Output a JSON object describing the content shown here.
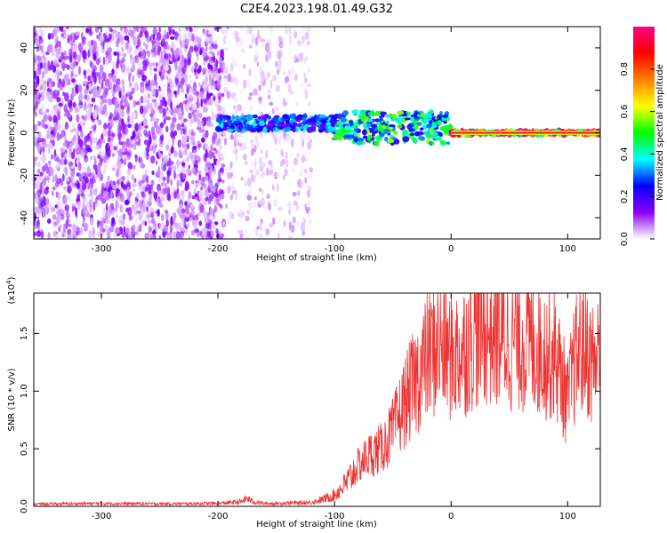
{
  "figure_title": "C2E4.2023.198.01.49.G32",
  "chart_data": [
    {
      "type": "heatmap",
      "xlabel": "Height of straight line (km)",
      "ylabel": "Frequency (Hz)",
      "xlim": [
        -358,
        128
      ],
      "ylim": [
        -50,
        50
      ],
      "xticks": [
        -300,
        -200,
        -100,
        0,
        100
      ],
      "xtick_labels": [
        "-300",
        "-200",
        "-100",
        "0",
        "100"
      ],
      "yticks": [
        -40,
        -20,
        0,
        20,
        40
      ],
      "ytick_labels": [
        "-40",
        "-20",
        "0",
        "20",
        "40"
      ],
      "colorbar": {
        "label": "Normalized spectral amplitude",
        "range": [
          0.0,
          1.0
        ],
        "ticks": [
          0.0,
          0.2,
          0.4,
          0.6,
          0.8
        ],
        "tick_labels": [
          "0.0",
          "0.2",
          "0.4",
          "0.6",
          "0.8"
        ],
        "colormap_stops": [
          "#ffffff",
          "#8b00ff",
          "#0000ff",
          "#00ffff",
          "#00ff00",
          "#ffff00",
          "#ff8000",
          "#ff0000",
          "#ff0080"
        ]
      },
      "bands": [
        {
          "x_range": [
            -358,
            -195
          ],
          "freq_range": [
            -50,
            50
          ],
          "amplitude": 0.12,
          "description_level": "noise"
        },
        {
          "x_range": [
            -195,
            -120
          ],
          "freq_range": [
            -50,
            50
          ],
          "amplitude": 0.05,
          "description_level": "sparse"
        },
        {
          "x_range": [
            -200,
            -100
          ],
          "freq_range": [
            1,
            8
          ],
          "amplitude": 0.3
        },
        {
          "x_range": [
            -100,
            0
          ],
          "freq_range": [
            -5,
            10
          ],
          "amplitude": 0.45
        },
        {
          "x_range": [
            0,
            128
          ],
          "freq_range": [
            -1,
            1
          ],
          "amplitude": 0.95
        }
      ]
    },
    {
      "type": "line",
      "xlabel": "Height of straight line (km)",
      "ylabel": "SNR (10 * v/v)",
      "y_multiplier": "(x10",
      "y_multiplier_exp": "4",
      "y_multiplier_close": ")",
      "xlim": [
        -358,
        128
      ],
      "ylim": [
        0,
        18500
      ],
      "xticks": [
        -300,
        -200,
        -100,
        0,
        100
      ],
      "xtick_labels": [
        "-300",
        "-200",
        "-100",
        "0",
        "100"
      ],
      "yticks": [
        0,
        5000,
        10000,
        15000
      ],
      "ytick_labels": [
        "0.0",
        "0.5",
        "1.0",
        "1.5"
      ],
      "color": "#ee3333",
      "series": [
        {
          "x": [
            -358,
            -300,
            -250,
            -200,
            -180,
            -175,
            -170,
            -160,
            -150,
            -140,
            -130,
            -120,
            -110,
            -100,
            -90,
            -80,
            -70,
            -60,
            -50,
            -40,
            -30,
            -20,
            -10,
            0,
            10,
            20,
            30,
            40,
            50,
            60,
            70,
            80,
            90,
            95,
            100,
            105,
            110,
            115,
            120,
            128
          ],
          "y": [
            200,
            250,
            220,
            250,
            400,
            700,
            400,
            250,
            250,
            300,
            300,
            350,
            600,
            1000,
            2000,
            3500,
            4500,
            5000,
            6500,
            9000,
            11000,
            13000,
            14000,
            13000,
            13500,
            15000,
            15500,
            15000,
            14500,
            14500,
            14000,
            13500,
            13000,
            11000,
            9000,
            12000,
            13500,
            14000,
            12500,
            13000
          ]
        }
      ]
    }
  ]
}
